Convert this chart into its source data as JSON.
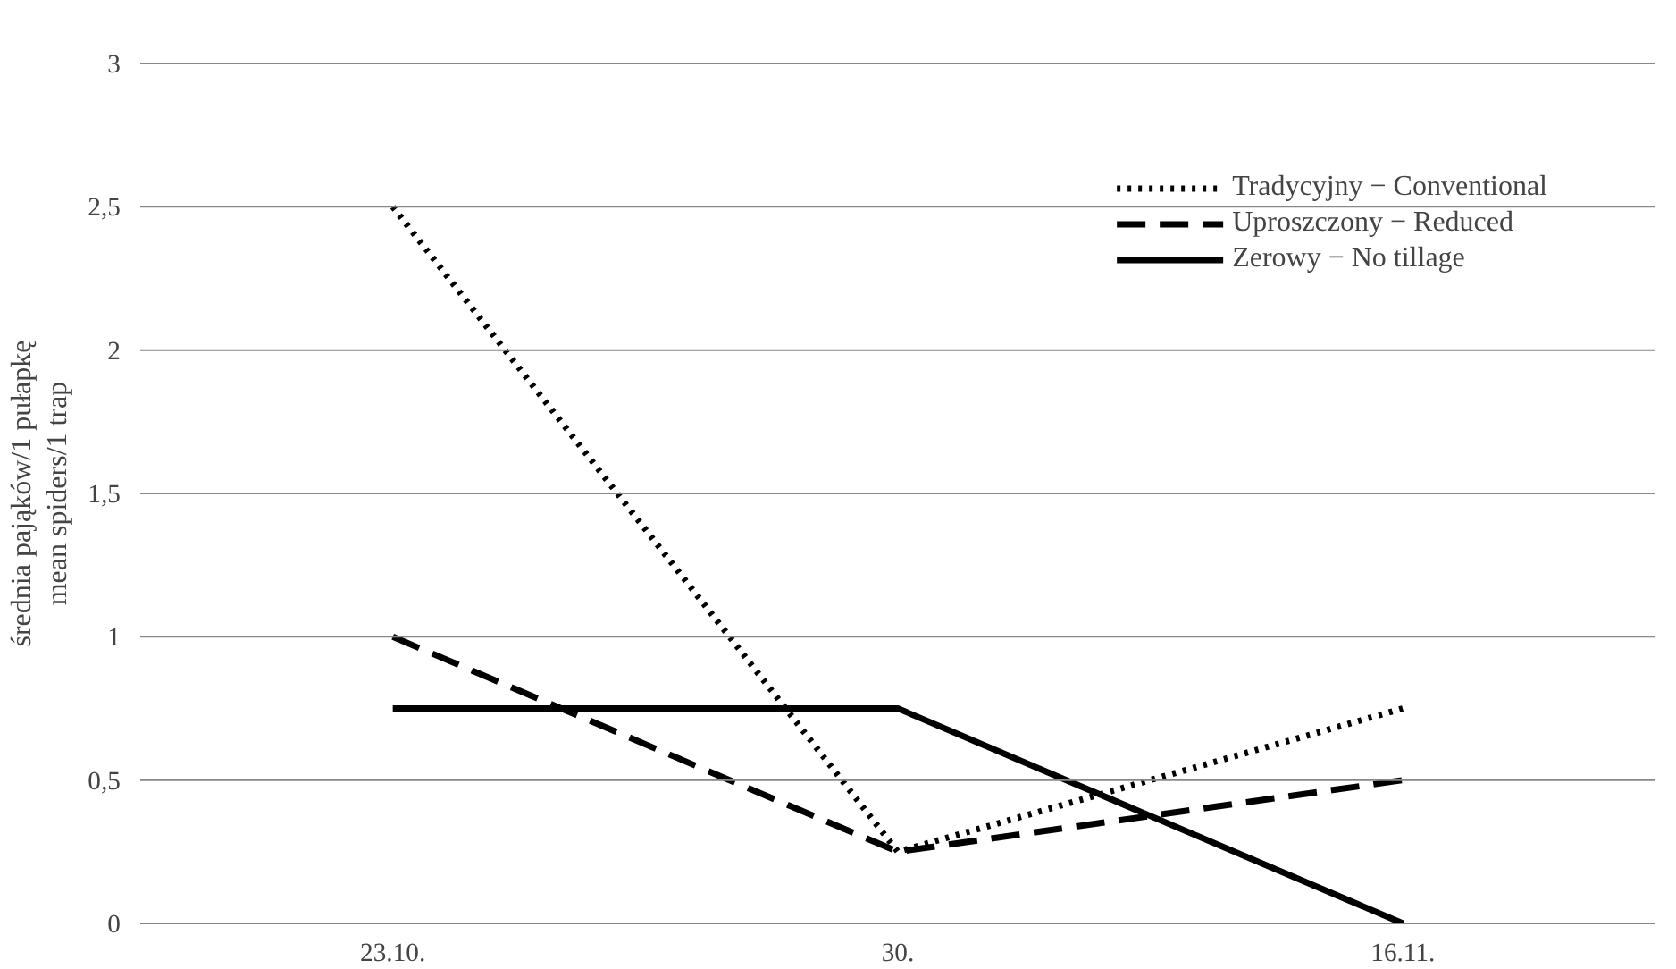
{
  "chart_data": {
    "type": "line",
    "ylabel": "średnia pająków/1 pułapkę\nmean spiders/1 trap",
    "categories": [
      "23.10.",
      "30.",
      "16.11."
    ],
    "series": [
      {
        "name": "Tradycyjny − Conventional",
        "color": "#000000",
        "line_style": "dotted",
        "values": [
          2.5,
          0.25,
          0.75
        ]
      },
      {
        "name": "Uproszczony − Reduced",
        "color": "#000000",
        "line_style": "dashed",
        "values": [
          1,
          0.25,
          0.5
        ]
      },
      {
        "name": "Zerowy − No tillage",
        "color": "#000000",
        "line_style": "solid",
        "values": [
          0.75,
          0.75,
          0
        ]
      }
    ],
    "ylim": [
      0,
      3
    ],
    "yticks": [
      0,
      {
        "value": 0.5,
        "label": "0,5"
      },
      1,
      {
        "value": 1.5,
        "label": "1,5"
      },
      2,
      {
        "value": 2.5,
        "label": "2,5"
      },
      3
    ],
    "grid": "y",
    "legend": "top right",
    "marker": "none"
  }
}
